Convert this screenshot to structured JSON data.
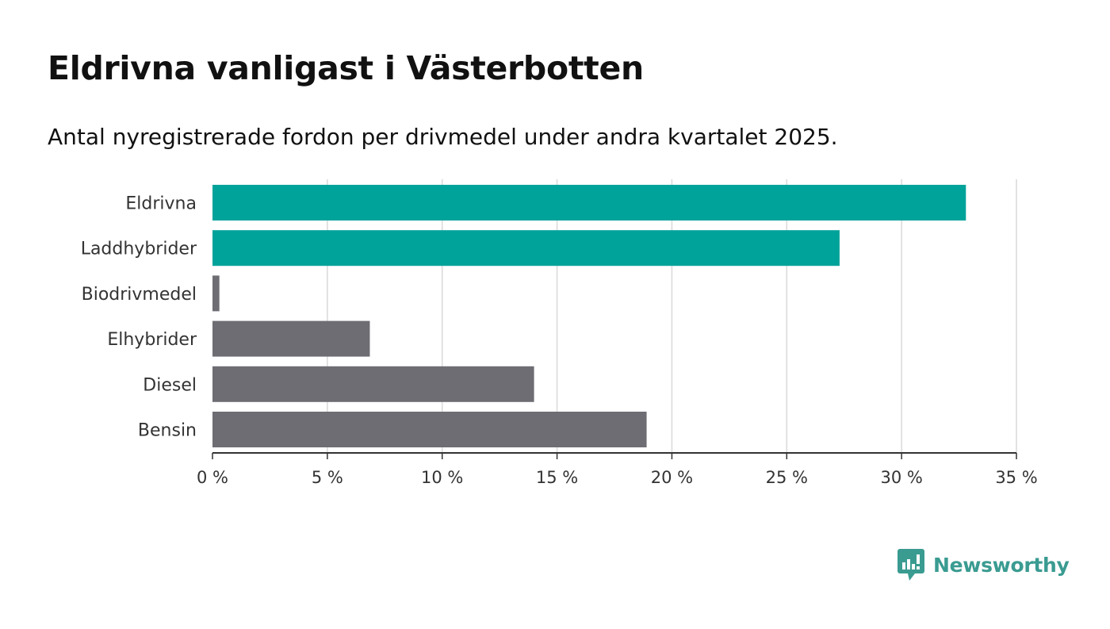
{
  "title": "Eldrivna vanligast i Västerbotten",
  "subtitle": "Antal nyregistrerade fordon per drivmedel under andra kvartalet 2025.",
  "brand": {
    "name": "Newsworthy",
    "icon": "newsworthy-logo-icon",
    "color": "#3a9b91"
  },
  "chart_data": {
    "type": "bar",
    "orientation": "horizontal",
    "categories": [
      "Eldrivna",
      "Laddhybrider",
      "Biodrivmedel",
      "Elhybrider",
      "Diesel",
      "Bensin"
    ],
    "values": [
      32.8,
      27.3,
      0.3,
      6.85,
      14.0,
      18.9
    ],
    "colors": [
      "#00a39a",
      "#00a39a",
      "#6e6d73",
      "#6e6d73",
      "#6e6d73",
      "#6e6d73"
    ],
    "xlim": [
      0,
      35
    ],
    "xticks": [
      0,
      5,
      10,
      15,
      20,
      25,
      30,
      35
    ],
    "xtick_labels": [
      "0 %",
      "5 %",
      "10 %",
      "15 %",
      "20 %",
      "25 %",
      "30 %",
      "35 %"
    ],
    "grid": true,
    "xlabel": "",
    "ylabel": ""
  }
}
